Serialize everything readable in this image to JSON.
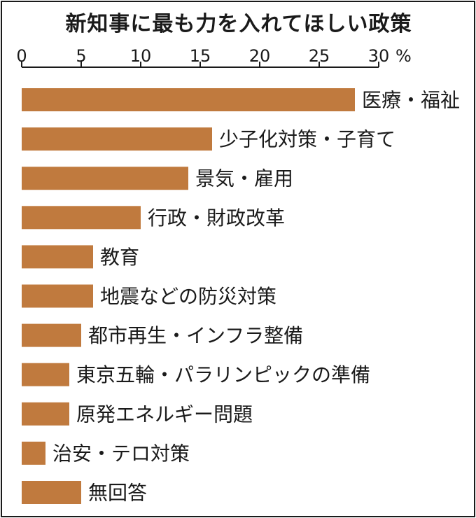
{
  "chart_data": {
    "type": "bar",
    "orientation": "horizontal",
    "title": "新知事に最も力を入れてほしい政策",
    "unit": "%",
    "xlim": [
      0,
      30
    ],
    "xticks": [
      0,
      5,
      10,
      15,
      20,
      25,
      30
    ],
    "grid": false,
    "bar_color": "#c07a3e",
    "categories": [
      "医療・福祉",
      "少子化対策・子育て",
      "景気・雇用",
      "行政・財政改革",
      "教育",
      "地震などの防災対策",
      "都市再生・インフラ整備",
      "東京五輪・パラリンピックの準備",
      "原発エネルギー問題",
      "治安・テロ対策",
      "無回答"
    ],
    "values": [
      28,
      16,
      14,
      10,
      6,
      6,
      5,
      4,
      4,
      2,
      5
    ]
  }
}
